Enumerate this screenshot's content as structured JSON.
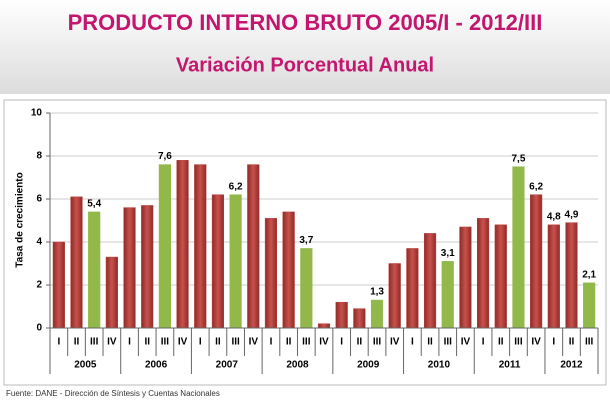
{
  "chart_data": {
    "type": "bar",
    "title": "PRODUCTO INTERNO BRUTO 2005/I - 2012/III",
    "subtitle": "Variación Porcentual Anual",
    "y_label": "Tasa de crecimiento",
    "source": "Fuente: DANE - Dirección de Síntesis y Cuentas Nacionales",
    "category_groups": [
      {
        "label": "2005",
        "categories": [
          "I",
          "II",
          "III",
          "IV"
        ]
      },
      {
        "label": "2006",
        "categories": [
          "I",
          "II",
          "III",
          "IV"
        ]
      },
      {
        "label": "2007",
        "categories": [
          "I",
          "II",
          "III",
          "IV"
        ]
      },
      {
        "label": "2008",
        "categories": [
          "I",
          "II",
          "III",
          "IV"
        ]
      },
      {
        "label": "2009",
        "categories": [
          "I",
          "II",
          "III",
          "IV"
        ]
      },
      {
        "label": "2010",
        "categories": [
          "I",
          "II",
          "III",
          "IV"
        ]
      },
      {
        "label": "2011",
        "categories": [
          "I",
          "II",
          "III",
          "IV"
        ]
      },
      {
        "label": "2012",
        "categories": [
          "I",
          "II",
          "III"
        ]
      }
    ],
    "values": [
      4.0,
      6.1,
      5.4,
      3.3,
      5.6,
      5.7,
      7.6,
      7.8,
      7.6,
      6.2,
      6.2,
      7.6,
      5.1,
      5.4,
      3.7,
      0.2,
      1.2,
      0.9,
      1.3,
      3.0,
      3.7,
      4.4,
      3.1,
      4.7,
      5.1,
      4.8,
      7.5,
      6.2,
      4.8,
      4.9,
      2.1
    ],
    "value_labels": [
      null,
      null,
      "5,4",
      null,
      null,
      null,
      "7,6",
      null,
      null,
      null,
      "6,2",
      null,
      null,
      null,
      "3,7",
      null,
      null,
      null,
      "1,3",
      null,
      null,
      null,
      "3,1",
      null,
      null,
      null,
      "7,5",
      "6,2",
      "4,8",
      "4,9",
      "2,1"
    ],
    "colors": [
      "#b5403b",
      "#b5403b",
      "#92b84a",
      "#b5403b",
      "#b5403b",
      "#b5403b",
      "#92b84a",
      "#b5403b",
      "#b5403b",
      "#b5403b",
      "#92b84a",
      "#b5403b",
      "#b5403b",
      "#b5403b",
      "#92b84a",
      "#b5403b",
      "#b5403b",
      "#b5403b",
      "#92b84a",
      "#b5403b",
      "#b5403b",
      "#b5403b",
      "#92b84a",
      "#b5403b",
      "#b5403b",
      "#b5403b",
      "#92b84a",
      "#b5403b",
      "#b5403b",
      "#b5403b",
      "#92b84a"
    ],
    "ylim": [
      0,
      10
    ],
    "yticks": [
      0,
      2,
      4,
      6,
      8,
      10
    ],
    "grid": true
  }
}
